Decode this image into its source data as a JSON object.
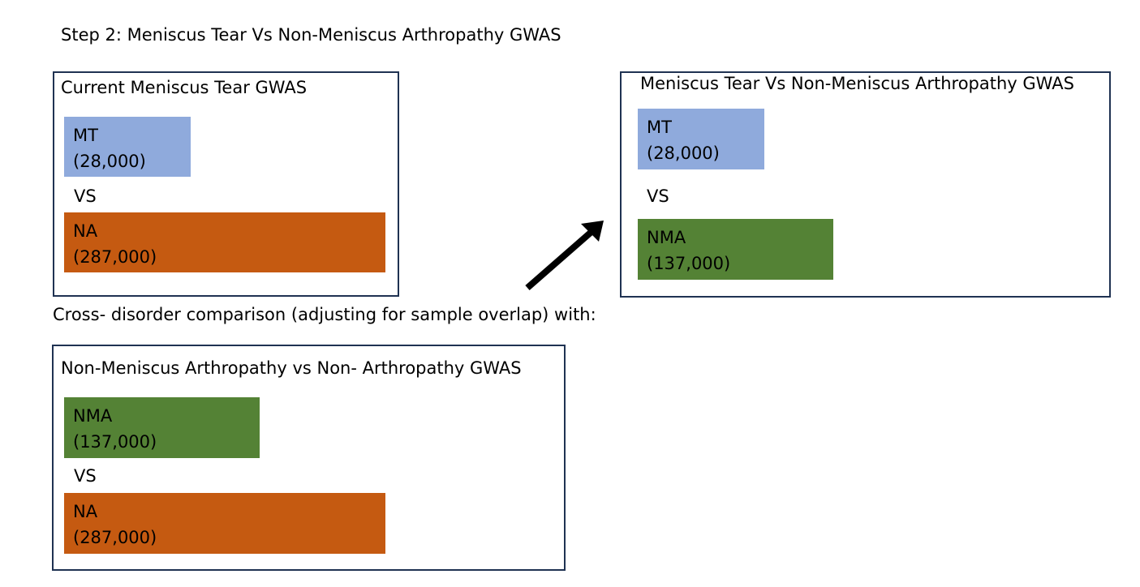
{
  "step_title": "Step 2: Meniscus Tear Vs Non-Meniscus Arthropathy GWAS",
  "cross_text": "Cross- disorder comparison (adjusting for sample overlap) with:",
  "colors": {
    "mt": "#8faadc",
    "na": "#c55a11",
    "nma": "#548235",
    "border": "#1f3252"
  },
  "panels": {
    "current": {
      "title": "Current Meniscus Tear GWAS",
      "group1": {
        "code": "MT",
        "count": "(28,000)"
      },
      "vs": "VS",
      "group2": {
        "code": "NA",
        "count": "(287,000)"
      }
    },
    "target": {
      "title": "Meniscus Tear Vs Non-Meniscus Arthropathy GWAS",
      "group1": {
        "code": "MT",
        "count": "(28,000)"
      },
      "vs": "VS",
      "group2": {
        "code": "NMA",
        "count": "(137,000)"
      }
    },
    "non_meniscus": {
      "title": "Non-Meniscus Arthropathy vs Non- Arthropathy GWAS",
      "group1": {
        "code": "NMA",
        "count": "(137,000)"
      },
      "vs": "VS",
      "group2": {
        "code": "NA",
        "count": "(287,000)"
      }
    }
  }
}
